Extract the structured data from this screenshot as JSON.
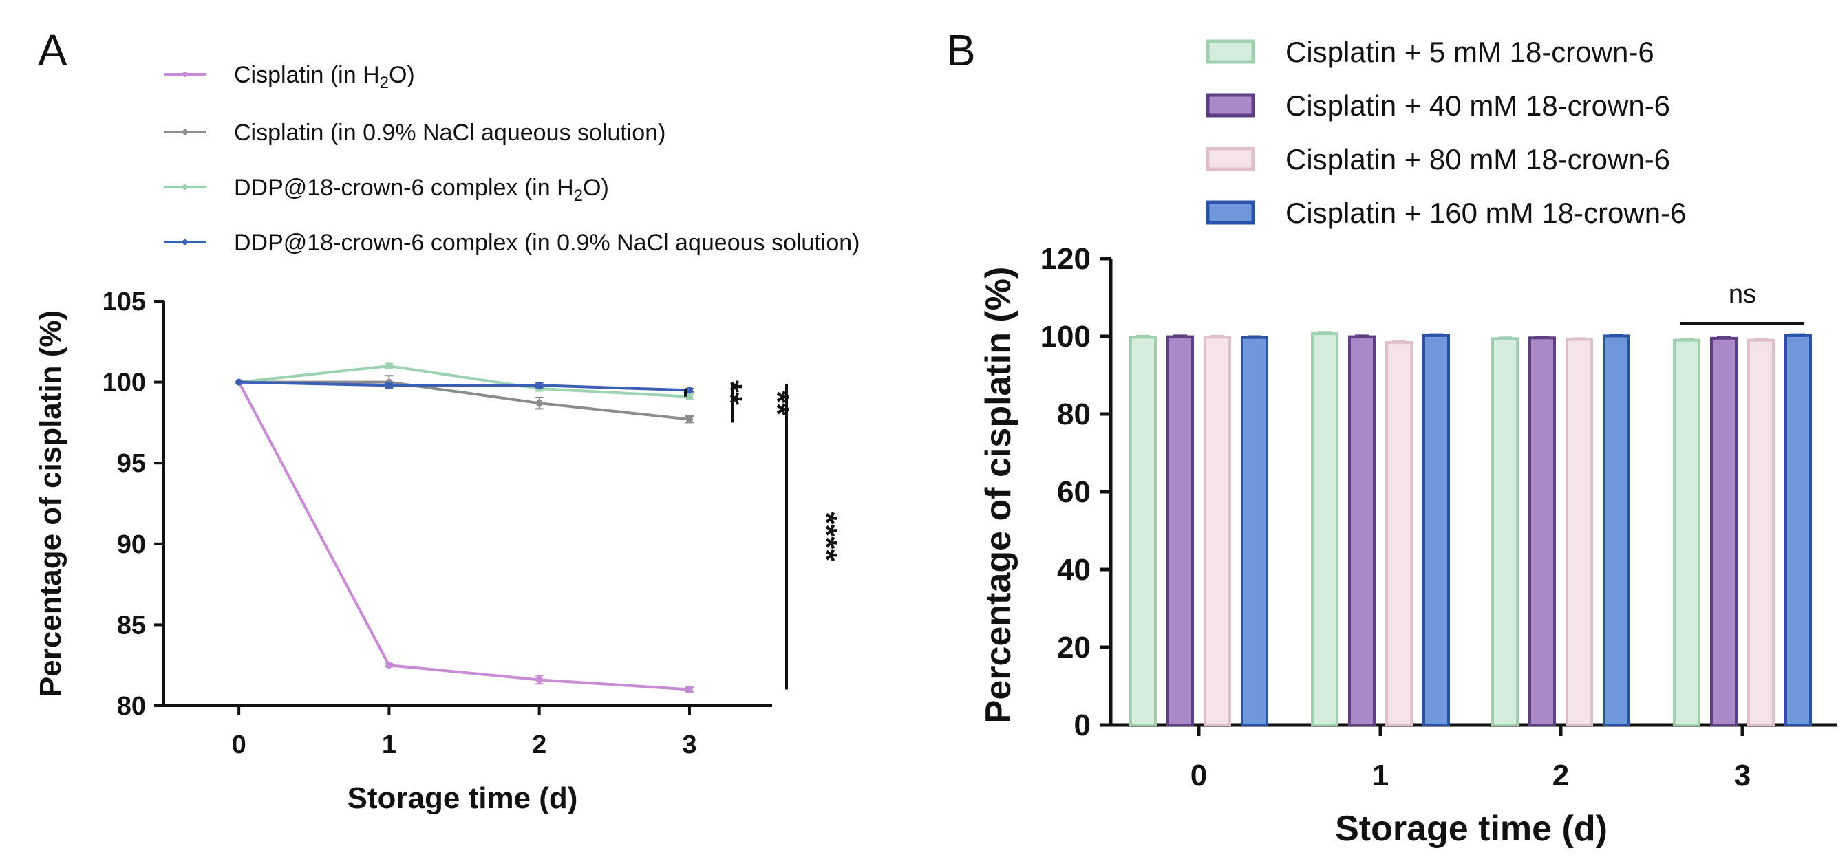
{
  "chart_data": [
    {
      "panel": "A",
      "type": "line",
      "xlabel": "Storage time (d)",
      "ylabel": "Percentage of cisplatin (%)",
      "x": [
        0,
        1,
        2,
        3
      ],
      "xticks": [
        "0",
        "1",
        "2",
        "3"
      ],
      "yticks": [
        "80",
        "85",
        "90",
        "95",
        "100",
        "105"
      ],
      "xlim": [
        -0.5,
        3.55
      ],
      "ylim": [
        80,
        105
      ],
      "series": [
        {
          "name": "Cisplatin (in H₂O)",
          "name_main": "Cisplatin (in H",
          "name_sub": "2",
          "name_tail": "O)",
          "color": "#c98bd6",
          "values": [
            100,
            82.5,
            81.6,
            81.0
          ],
          "errors": [
            0,
            0.1,
            0.25,
            0.15
          ]
        },
        {
          "name": "Cisplatin (in 0.9% NaCl aqueous solution)",
          "name_main": "Cisplatin (in 0.9% NaCl aqueous solution)",
          "name_sub": "",
          "name_tail": "",
          "color": "#8c8c8c",
          "values": [
            100,
            100.0,
            98.7,
            97.7
          ],
          "errors": [
            0,
            0.4,
            0.35,
            0.2
          ]
        },
        {
          "name": "DDP@18-crown-6 complex (in H₂O)",
          "name_main": "DDP@18-crown-6 complex (in H",
          "name_sub": "2",
          "name_tail": "O)",
          "color": "#9bd3b0",
          "values": [
            100,
            101.0,
            99.6,
            99.1
          ],
          "errors": [
            0,
            0.15,
            0.15,
            0.15
          ]
        },
        {
          "name": "DDP@18-crown-6 complex (in 0.9% NaCl aqueous solution)",
          "name_main": "DDP@18-crown-6 complex (in 0.9% NaCl aqueous solution)",
          "name_sub": "",
          "name_tail": "",
          "color": "#3a5fb5",
          "values": [
            100,
            99.8,
            99.8,
            99.5
          ],
          "errors": [
            0,
            0.15,
            0.15,
            0.1
          ]
        }
      ],
      "significance": [
        {
          "label": "**",
          "comparison": "DDP@18-crown-6 (H2O) vs DDP@18-crown-6 (NaCl), day 3",
          "from": 99.1,
          "to": 99.6
        },
        {
          "label": "**",
          "comparison": "Cisplatin (NaCl) vs DDP@18-crown-6 (NaCl), day 3",
          "from": 97.5,
          "to": 99.9
        },
        {
          "label": "****",
          "comparison": "Cisplatin (H2O) vs DDP@18-crown-6 (NaCl), day 3",
          "from": 81.0,
          "to": 99.9
        }
      ]
    },
    {
      "panel": "B",
      "type": "bar",
      "xlabel": "Storage time (d)",
      "ylabel": "Percentage of cisplatin (%)",
      "categories": [
        "0",
        "1",
        "2",
        "3"
      ],
      "yticks": [
        "0",
        "20",
        "40",
        "60",
        "80",
        "100",
        "120"
      ],
      "ylim": [
        0,
        120
      ],
      "series": [
        {
          "name": "Cisplatin + 5 mM 18-crown-6",
          "fill": "#d3ecdc",
          "stroke": "#9fd1b0",
          "values": [
            99.8,
            100.7,
            99.4,
            99.0
          ],
          "errors": [
            0.3,
            0.4,
            0.3,
            0.3
          ]
        },
        {
          "name": "Cisplatin + 40 mM 18-crown-6",
          "fill": "#a98ac6",
          "stroke": "#5e3f86",
          "values": [
            99.9,
            99.9,
            99.6,
            99.5
          ],
          "errors": [
            0.3,
            0.3,
            0.3,
            0.3
          ]
        },
        {
          "name": "Cisplatin + 80 mM 18-crown-6",
          "fill": "#f4e3e8",
          "stroke": "#e0bfc9",
          "values": [
            99.8,
            98.4,
            99.2,
            99.0
          ],
          "errors": [
            0.3,
            0.3,
            0.3,
            0.3
          ]
        },
        {
          "name": "Cisplatin + 160 mM 18-crown-6",
          "fill": "#6f97db",
          "stroke": "#2a52a8",
          "values": [
            99.7,
            100.2,
            100.1,
            100.2
          ],
          "errors": [
            0.3,
            0.3,
            0.3,
            0.3
          ]
        }
      ],
      "significance": [
        {
          "label": "ns",
          "category": "3"
        }
      ]
    }
  ]
}
